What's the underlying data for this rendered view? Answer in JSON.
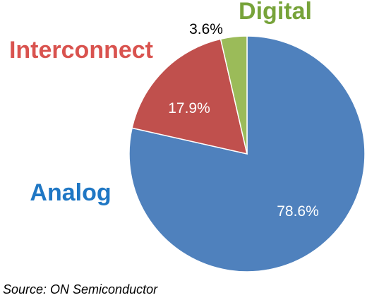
{
  "chart_data": {
    "type": "pie",
    "categories": [
      "Analog",
      "Interconnect",
      "Digital"
    ],
    "values": [
      78.6,
      17.9,
      3.6
    ],
    "value_labels": [
      "78.6%",
      "17.9%",
      "3.6%"
    ],
    "colors": [
      "#4f81bd",
      "#c0504d",
      "#9bbb59"
    ],
    "label_colors": [
      "#1f77c4",
      "#d9534f",
      "#77a33a"
    ],
    "value_label_colors": [
      "#ffffff",
      "#ffffff",
      "#000000"
    ],
    "start": "12 o'clock",
    "direction": "clockwise"
  },
  "source": "Source: ON Semiconductor"
}
